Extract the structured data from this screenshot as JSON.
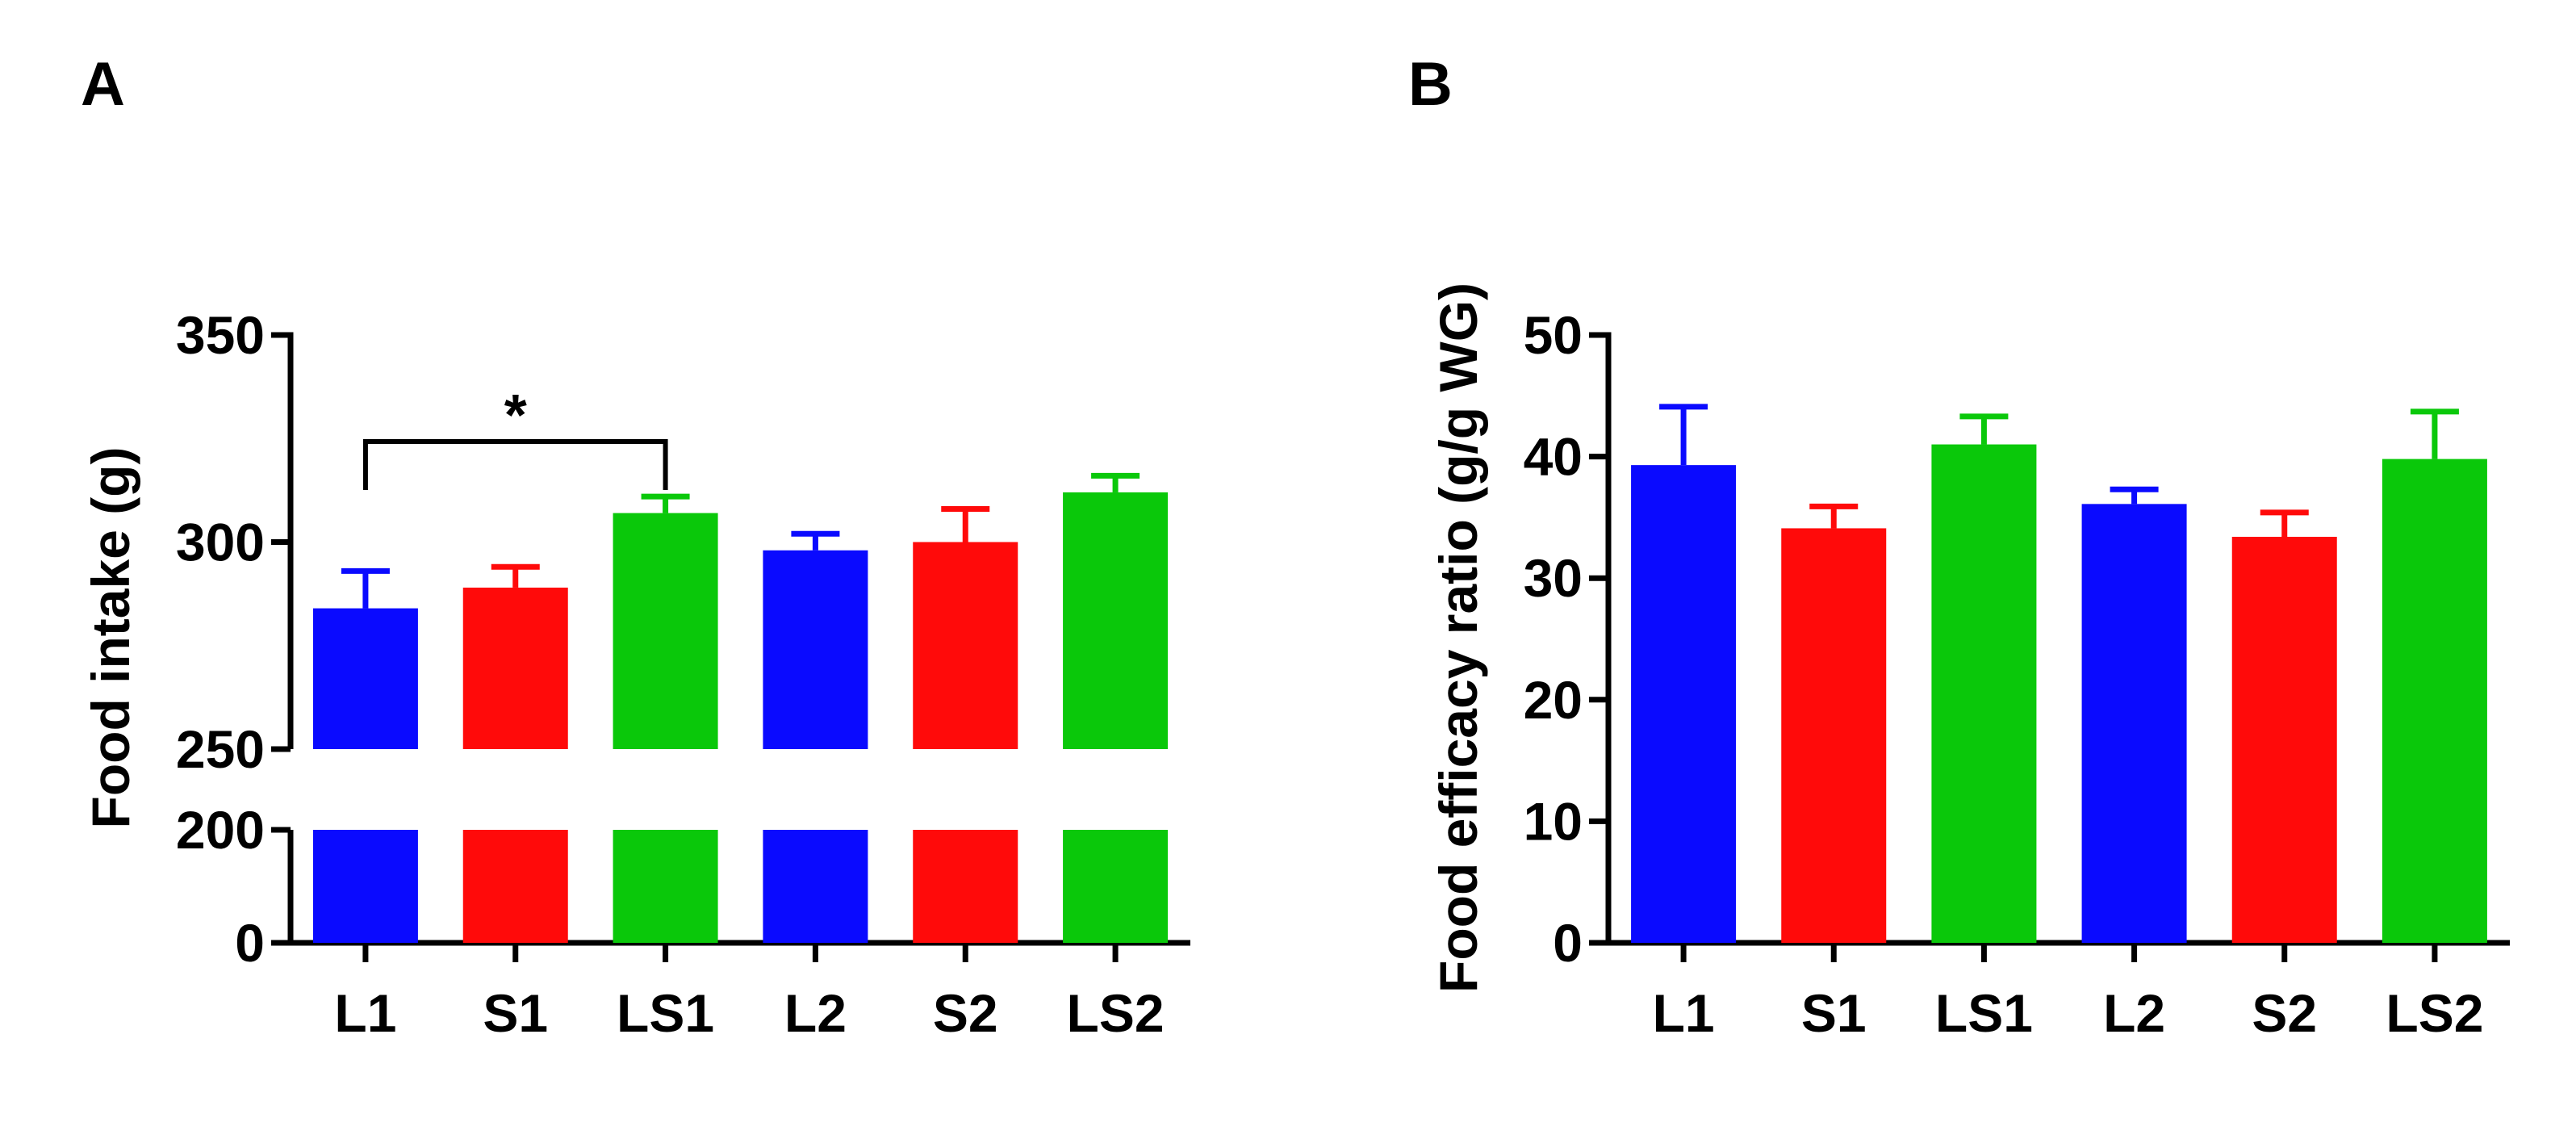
{
  "colors": {
    "L": "#0a0aff",
    "S": "#ff0a0a",
    "LS": "#0ac80a",
    "axis": "#000000"
  },
  "chart_data": [
    {
      "type": "bar",
      "panel_label": "A",
      "title": "",
      "xlabel": "",
      "ylabel": "Food intake (g)",
      "categories": [
        "L1",
        "S1",
        "LS1",
        "L2",
        "S2",
        "LS2"
      ],
      "values": [
        284,
        289,
        307,
        298,
        300,
        312
      ],
      "errors": [
        9,
        5,
        4,
        4,
        8,
        4
      ],
      "bar_colors": [
        "L",
        "S",
        "LS",
        "L",
        "S",
        "LS"
      ],
      "axis_break": {
        "lower": [
          0,
          200
        ],
        "upper": [
          250,
          350
        ]
      },
      "yticks_lower": [
        "0",
        "200"
      ],
      "yticks_upper": [
        "250",
        "300",
        "350"
      ],
      "significance": {
        "from": "L1",
        "to": "LS1",
        "label": "*"
      }
    },
    {
      "type": "bar",
      "panel_label": "B",
      "title": "",
      "xlabel": "",
      "ylabel": "Food efficacy ratio (g/g WG)",
      "categories": [
        "L1",
        "S1",
        "LS1",
        "L2",
        "S2",
        "LS2"
      ],
      "values": [
        39.3,
        34.1,
        41.0,
        36.1,
        33.4,
        39.8
      ],
      "errors": [
        4.8,
        1.8,
        2.3,
        1.2,
        2.0,
        3.9
      ],
      "bar_colors": [
        "L",
        "S",
        "LS",
        "L",
        "S",
        "LS"
      ],
      "ylim": [
        0,
        50
      ],
      "yticks": [
        "0",
        "10",
        "20",
        "30",
        "40",
        "50"
      ]
    }
  ]
}
